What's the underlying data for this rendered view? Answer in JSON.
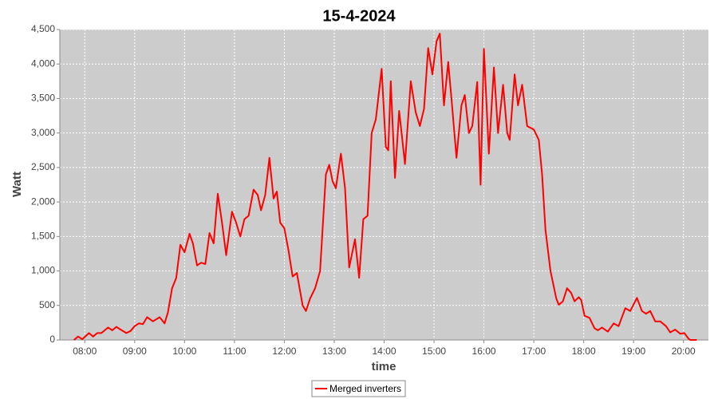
{
  "chart_data": {
    "type": "line",
    "title": "15-4-2024",
    "xlabel": "time",
    "ylabel": "Watt",
    "xlim": [
      "07:30",
      "20:30"
    ],
    "xticks": [
      "08:00",
      "09:00",
      "10:00",
      "11:00",
      "12:00",
      "13:00",
      "14:00",
      "15:00",
      "16:00",
      "17:00",
      "18:00",
      "19:00",
      "20:00"
    ],
    "ylim": [
      0,
      4500
    ],
    "yticks": [
      0,
      {
        "value": 500,
        "label": "500"
      },
      {
        "value": 1000,
        "label": "1,000"
      },
      {
        "value": 1500,
        "label": "1,500"
      },
      {
        "value": 2000,
        "label": "2,000"
      },
      {
        "value": 2500,
        "label": "2,500"
      },
      {
        "value": 3000,
        "label": "3,000"
      },
      {
        "value": 3500,
        "label": "3,500"
      },
      {
        "value": 4000,
        "label": "4,000"
      },
      {
        "value": 4500,
        "label": "4,500"
      }
    ],
    "grid": true,
    "legend": "bottom",
    "x": [
      "07:47",
      "07:52",
      "07:57",
      "08:05",
      "08:10",
      "08:15",
      "08:20",
      "08:28",
      "08:33",
      "08:38",
      "08:43",
      "08:50",
      "08:55",
      "09:00",
      "09:05",
      "09:10",
      "09:15",
      "09:22",
      "09:30",
      "09:36",
      "09:40",
      "09:45",
      "09:50",
      "09:55",
      "10:00",
      "10:06",
      "10:10",
      "10:15",
      "10:20",
      "10:25",
      "10:30",
      "10:35",
      "10:40",
      "10:45",
      "10:50",
      "10:57",
      "11:02",
      "11:07",
      "11:12",
      "11:17",
      "11:23",
      "11:28",
      "11:32",
      "11:37",
      "11:42",
      "11:47",
      "11:51",
      "11:55",
      "12:00",
      "12:05",
      "12:10",
      "12:15",
      "12:22",
      "12:26",
      "12:31",
      "12:37",
      "12:43",
      "12:50",
      "12:54",
      "12:58",
      "13:02",
      "13:08",
      "13:13",
      "13:18",
      "13:25",
      "13:30",
      "13:35",
      "13:40",
      "13:45",
      "13:50",
      "13:57",
      "14:02",
      "14:05",
      "14:08",
      "14:13",
      "14:18",
      "14:21",
      "14:25",
      "14:32",
      "14:38",
      "14:43",
      "14:48",
      "14:53",
      "14:58",
      "15:03",
      "15:07",
      "15:12",
      "15:17",
      "15:21",
      "15:27",
      "15:33",
      "15:37",
      "15:42",
      "15:46",
      "15:52",
      "15:56",
      "16:00",
      "16:06",
      "16:12",
      "16:17",
      "16:23",
      "16:28",
      "16:31",
      "16:37",
      "16:41",
      "16:46",
      "16:52",
      "17:00",
      "17:06",
      "17:10",
      "17:14",
      "17:20",
      "17:27",
      "17:30",
      "17:35",
      "17:40",
      "17:45",
      "17:49",
      "17:54",
      "17:57",
      "18:01",
      "18:07",
      "18:13",
      "18:17",
      "18:22",
      "18:29",
      "18:36",
      "18:42",
      "18:50",
      "18:56",
      "19:04",
      "19:10",
      "19:15",
      "19:20",
      "19:26",
      "19:32",
      "19:39",
      "19:44",
      "19:50",
      "19:56",
      "20:01",
      "20:06",
      "20:08",
      "20:16"
    ],
    "series": [
      {
        "name": "Merged inverters",
        "color": "#ff0000",
        "values": [
          0,
          50,
          10,
          100,
          50,
          100,
          100,
          180,
          140,
          190,
          150,
          100,
          130,
          200,
          240,
          230,
          330,
          270,
          330,
          240,
          400,
          750,
          900,
          1380,
          1270,
          1540,
          1400,
          1080,
          1120,
          1100,
          1550,
          1400,
          2120,
          1700,
          1230,
          1860,
          1700,
          1500,
          1750,
          1800,
          2180,
          2100,
          1880,
          2100,
          2640,
          2050,
          2150,
          1700,
          1620,
          1300,
          920,
          970,
          500,
          420,
          600,
          750,
          1000,
          2400,
          2540,
          2300,
          2200,
          2700,
          2200,
          1050,
          1460,
          900,
          1750,
          1800,
          3000,
          3200,
          3930,
          2800,
          2750,
          3750,
          2350,
          3320,
          3000,
          2550,
          3750,
          3300,
          3100,
          3350,
          4230,
          3850,
          4330,
          4440,
          3400,
          4030,
          3500,
          2640,
          3400,
          3550,
          3000,
          3100,
          3740,
          2250,
          4220,
          2700,
          3950,
          3000,
          3700,
          3000,
          2900,
          3850,
          3400,
          3700,
          3100,
          3050,
          2900,
          2400,
          1600,
          1000,
          600,
          510,
          560,
          750,
          680,
          560,
          620,
          580,
          350,
          320,
          170,
          140,
          180,
          120,
          240,
          200,
          460,
          420,
          610,
          420,
          380,
          420,
          270,
          270,
          200,
          110,
          150,
          90,
          100,
          20,
          0,
          0
        ]
      }
    ]
  }
}
